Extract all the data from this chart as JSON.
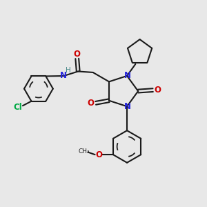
{
  "bg_color": "#e8e8e8",
  "bond_color": "#1a1a1a",
  "N_color": "#2222dd",
  "O_color": "#cc0000",
  "Cl_color": "#00aa44",
  "H_color": "#4a8a8a",
  "figsize": [
    3.0,
    3.0
  ],
  "dpi": 100,
  "xlim": [
    0,
    10
  ],
  "ylim": [
    0,
    10
  ]
}
